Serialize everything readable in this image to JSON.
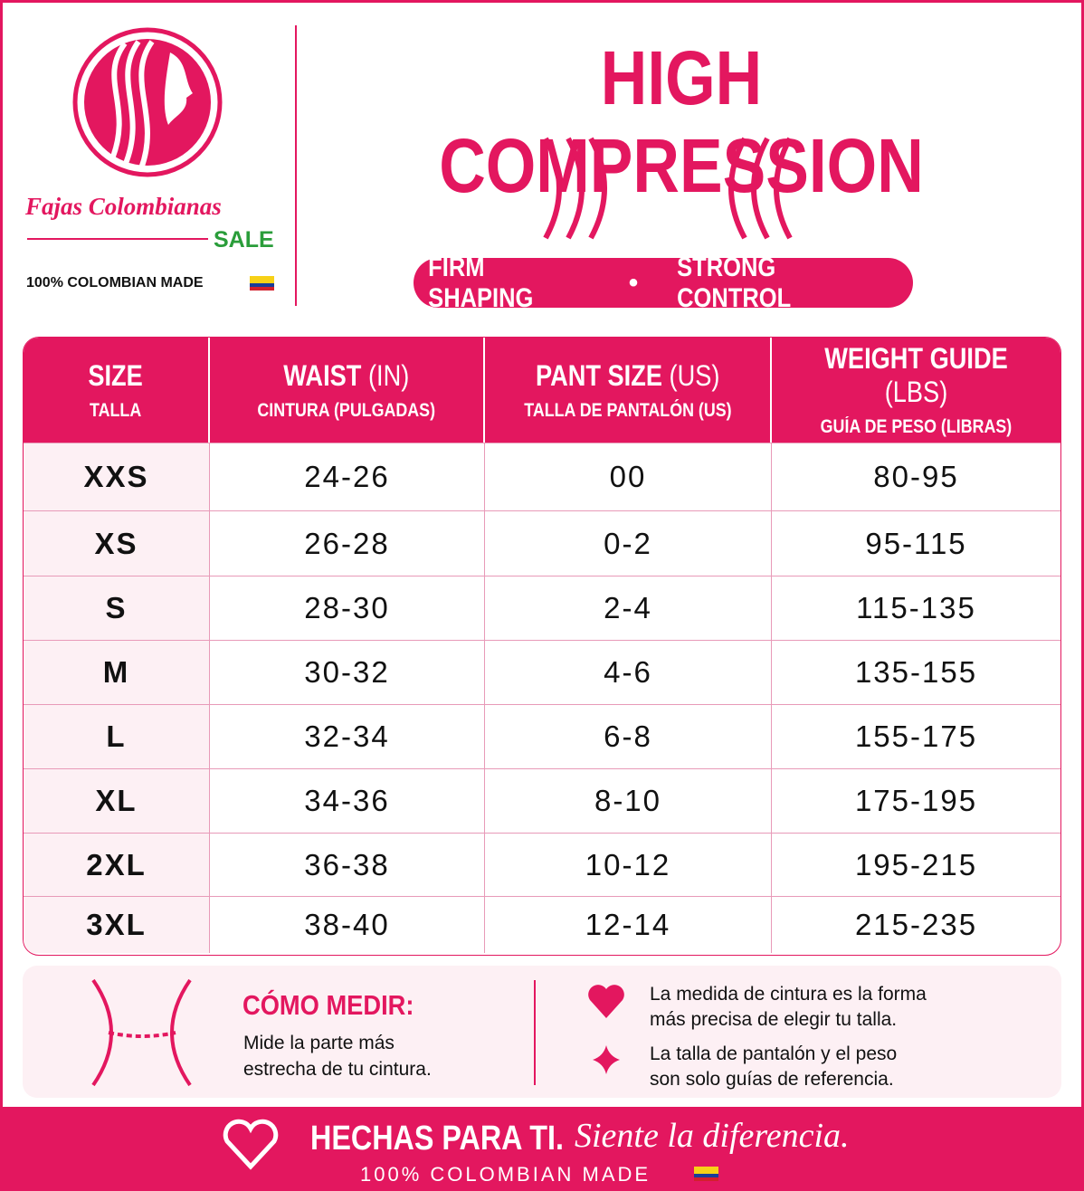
{
  "brand": {
    "name": "Fajas Colombianas",
    "tag": "SALE",
    "origin": "100% COLOMBIAN MADE"
  },
  "header": {
    "title": "HIGH COMPRESSION",
    "tagline": [
      "FIRM SHAPING",
      "STRONG CONTROL"
    ]
  },
  "table": {
    "columns": [
      {
        "main": "SIZE",
        "unit": null,
        "sub": "TALLA"
      },
      {
        "main": "WAIST",
        "unit": "(IN)",
        "sub": "CINTURA (PULGADAS)"
      },
      {
        "main": "PANT SIZE",
        "unit": "(US)",
        "sub": "TALLA DE PANTALÓN (US)"
      },
      {
        "main": "WEIGHT GUIDE",
        "unit": "(LBS)",
        "sub": "GUÍA DE PESO (LIBRAS)"
      }
    ],
    "rows": [
      [
        "XXS",
        "24-26",
        "00",
        "80-95"
      ],
      [
        "XS",
        "26-28",
        "0-2",
        "95-115"
      ],
      [
        "S",
        "28-30",
        "2-4",
        "115-135"
      ],
      [
        "M",
        "30-32",
        "4-6",
        "135-155"
      ],
      [
        "L",
        "32-34",
        "6-8",
        "155-175"
      ],
      [
        "XL",
        "34-36",
        "8-10",
        "175-195"
      ],
      [
        "2XL",
        "36-38",
        "10-12",
        "195-215"
      ],
      [
        "3XL",
        "38-40",
        "12-14",
        "215-235"
      ]
    ]
  },
  "measure": {
    "title": "CÓMO MEDIR:",
    "text": [
      "Mide la parte más",
      "estrecha de tu cintura."
    ]
  },
  "notes": [
    [
      "La medida de cintura es la forma",
      "más precisa de elegir tu talla."
    ],
    [
      "La talla de pantalón y el peso",
      "son solo guías de referencia."
    ]
  ],
  "footer": {
    "slogan": "HECHAS PARA TI.",
    "script": "Siente la diferencia.",
    "origin": "100% COLOMBIAN MADE"
  }
}
